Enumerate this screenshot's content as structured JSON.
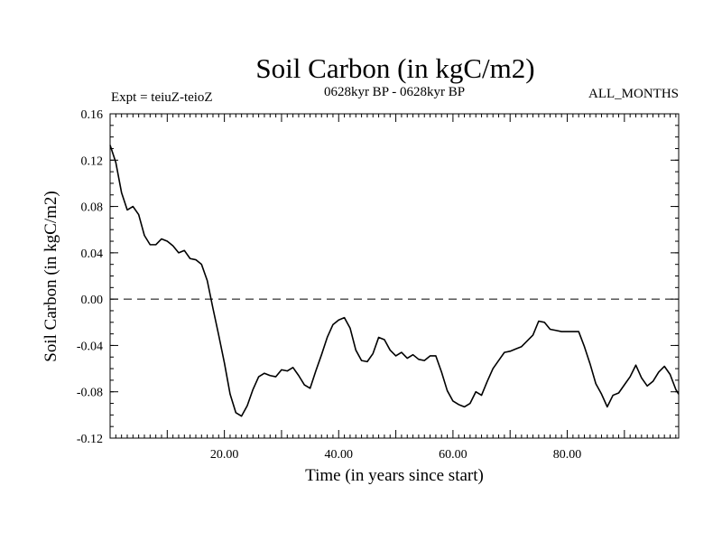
{
  "chart_data": {
    "type": "line",
    "title": "Soil Carbon (in kgC/m2)",
    "subtitle_left": "Expt = teiuZ-teioZ",
    "subtitle_center": "0628kyr BP - 0628kyr BP",
    "subtitle_right": "ALL_MONTHS",
    "xlabel": "Time (in years since start)",
    "ylabel": "Soil Carbon (in kgC/m2)",
    "xlim": [
      0,
      99.5
    ],
    "ylim": [
      -0.12,
      0.16
    ],
    "x_ticks": [
      20,
      40,
      60,
      80
    ],
    "x_tick_labels": [
      "20.00",
      "40.00",
      "60.00",
      "80.00"
    ],
    "y_ticks": [
      -0.12,
      -0.08,
      -0.04,
      0.0,
      0.04,
      0.08,
      0.12,
      0.16
    ],
    "y_tick_labels": [
      "-0.12",
      "-0.08",
      "-0.04",
      "0.00",
      "0.04",
      "0.08",
      "0.12",
      "0.16"
    ],
    "reference_line": {
      "y": 0.0,
      "style": "dashed"
    },
    "series": [
      {
        "name": "teiuZ-teioZ",
        "x": [
          0,
          1,
          2,
          3,
          4,
          5,
          6,
          7,
          8,
          9,
          10,
          11,
          12,
          13,
          14,
          15,
          16,
          17,
          18,
          19,
          20,
          21,
          22,
          23,
          24,
          25,
          26,
          27,
          28,
          29,
          30,
          31,
          32,
          33,
          34,
          35,
          36,
          37,
          38,
          39,
          40,
          41,
          42,
          43,
          44,
          45,
          46,
          47,
          48,
          49,
          50,
          51,
          52,
          53,
          54,
          55,
          56,
          57,
          58,
          59,
          60,
          61,
          62,
          63,
          64,
          65,
          66,
          67,
          68,
          69,
          70,
          71,
          72,
          73,
          74,
          75,
          76,
          77,
          78,
          79,
          80,
          81,
          82,
          83,
          84,
          85,
          86,
          87,
          88,
          89,
          90,
          91,
          92,
          93,
          94,
          95,
          96,
          97,
          98,
          99,
          99.5
        ],
        "y": [
          0.133,
          0.118,
          0.092,
          0.077,
          0.08,
          0.073,
          0.055,
          0.047,
          0.047,
          0.052,
          0.05,
          0.046,
          0.04,
          0.042,
          0.035,
          0.034,
          0.03,
          0.016,
          -0.008,
          -0.031,
          -0.055,
          -0.082,
          -0.098,
          -0.101,
          -0.092,
          -0.078,
          -0.067,
          -0.064,
          -0.066,
          -0.067,
          -0.061,
          -0.062,
          -0.059,
          -0.066,
          -0.074,
          -0.077,
          -0.062,
          -0.048,
          -0.033,
          -0.022,
          -0.018,
          -0.016,
          -0.025,
          -0.044,
          -0.053,
          -0.054,
          -0.047,
          -0.033,
          -0.035,
          -0.044,
          -0.049,
          -0.046,
          -0.051,
          -0.048,
          -0.052,
          -0.053,
          -0.049,
          -0.049,
          -0.063,
          -0.079,
          -0.088,
          -0.091,
          -0.093,
          -0.09,
          -0.08,
          -0.083,
          -0.071,
          -0.06,
          -0.053,
          -0.046,
          -0.045,
          -0.043,
          -0.041,
          -0.036,
          -0.031,
          -0.019,
          -0.02,
          -0.026,
          -0.027,
          -0.028,
          -0.028,
          -0.028,
          -0.028,
          -0.041,
          -0.056,
          -0.073,
          -0.082,
          -0.093,
          -0.083,
          -0.081,
          -0.074,
          -0.067,
          -0.057,
          -0.068,
          -0.075,
          -0.071,
          -0.063,
          -0.058,
          -0.065,
          -0.078,
          -0.082
        ]
      }
    ]
  }
}
